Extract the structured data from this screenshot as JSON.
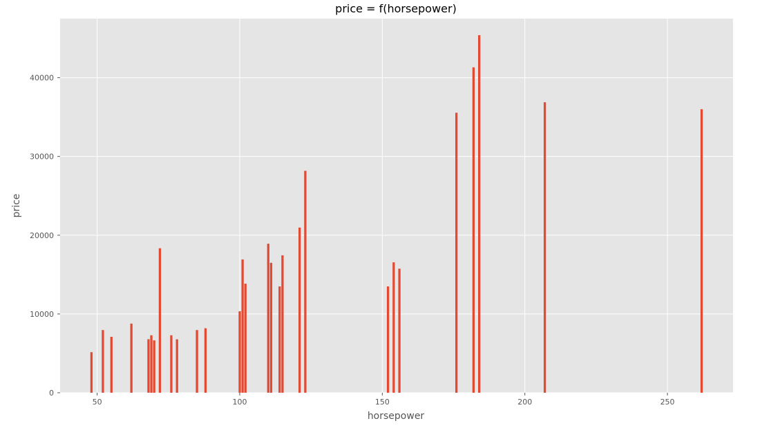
{
  "chart_data": {
    "type": "bar",
    "title": "price = f(horsepower)",
    "xlabel": "horsepower",
    "ylabel": "price",
    "xlim": [
      37,
      273
    ],
    "ylim": [
      0,
      47500
    ],
    "xticks": [
      50,
      100,
      150,
      200,
      250
    ],
    "yticks": [
      0,
      10000,
      20000,
      30000,
      40000
    ],
    "x": [
      48,
      52,
      55,
      62,
      68,
      69,
      70,
      72,
      76,
      78,
      85,
      88,
      100,
      101,
      102,
      110,
      111,
      114,
      115,
      121,
      123,
      152,
      154,
      156,
      176,
      182,
      184,
      207,
      262
    ],
    "values": [
      5151,
      7957,
      7099,
      8778,
      6795,
      7295,
      6649,
      18344,
      7295,
      6785,
      7957,
      8189,
      10345,
      16925,
      13845,
      18920,
      16500,
      13499,
      17450,
      20970,
      28176,
      13499,
      16558,
      15750,
      35550,
      41315,
      45400,
      36880,
      36000
    ],
    "grid": true,
    "colors": {
      "bar": "#E24A33",
      "plot_background": "#E5E5E5",
      "grid": "#FFFFFF",
      "text": "#555555"
    }
  }
}
